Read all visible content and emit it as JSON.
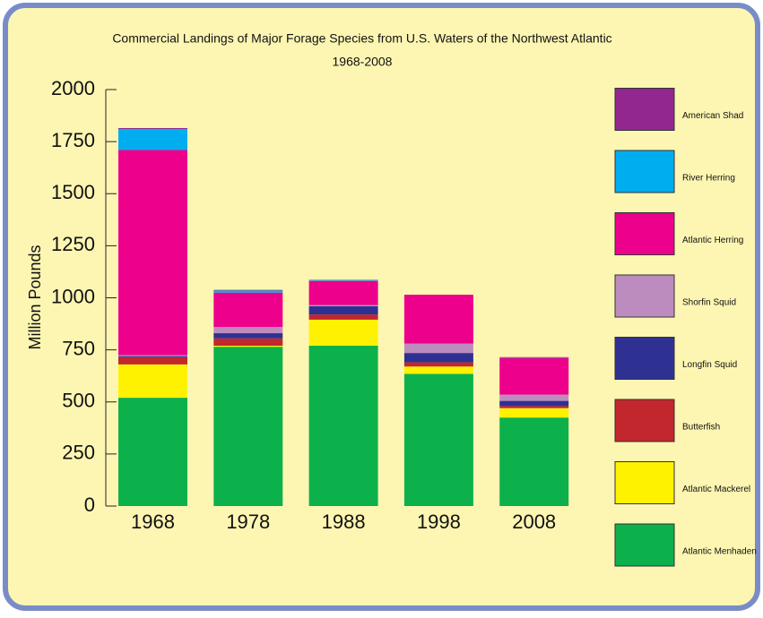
{
  "chart_data": {
    "type": "stacked_bar",
    "title": "Commercial Landings of Major Forage Species from U.S. Waters of the Northwest Atlantic",
    "subtitle": "1968-2008",
    "y_label": "Million Pounds",
    "categories": [
      "1968",
      "1978",
      "1988",
      "1998",
      "2008"
    ],
    "series": [
      {
        "name": "Atlantic Menhaden",
        "color": "#0db14b",
        "values": [
          520,
          765,
          770,
          635,
          425
        ]
      },
      {
        "name": "Atlantic Mackerel",
        "color": "#fff200",
        "values": [
          160,
          5,
          125,
          35,
          45
        ]
      },
      {
        "name": "Butterfish",
        "color": "#c1272d",
        "values": [
          35,
          35,
          25,
          20,
          10
        ]
      },
      {
        "name": "Longfin Squid",
        "color": "#2e3192",
        "values": [
          5,
          25,
          40,
          45,
          25
        ]
      },
      {
        "name": "Shorfin Squid",
        "color": "#bd8cbf",
        "values": [
          5,
          30,
          5,
          45,
          30
        ]
      },
      {
        "name": "Atlantic Herring",
        "color": "#ec008c",
        "values": [
          985,
          165,
          115,
          235,
          175
        ]
      },
      {
        "name": "River Herring",
        "color": "#00aeef",
        "values": [
          100,
          10,
          3,
          0,
          2
        ]
      },
      {
        "name": "American Shad",
        "color": "#92278f",
        "values": [
          5,
          3,
          3,
          0,
          3
        ]
      }
    ],
    "ylim": [
      0,
      2000
    ],
    "yticks": [
      0,
      250,
      500,
      750,
      1000,
      1250,
      1500,
      1750,
      2000
    ],
    "legend": "right"
  }
}
